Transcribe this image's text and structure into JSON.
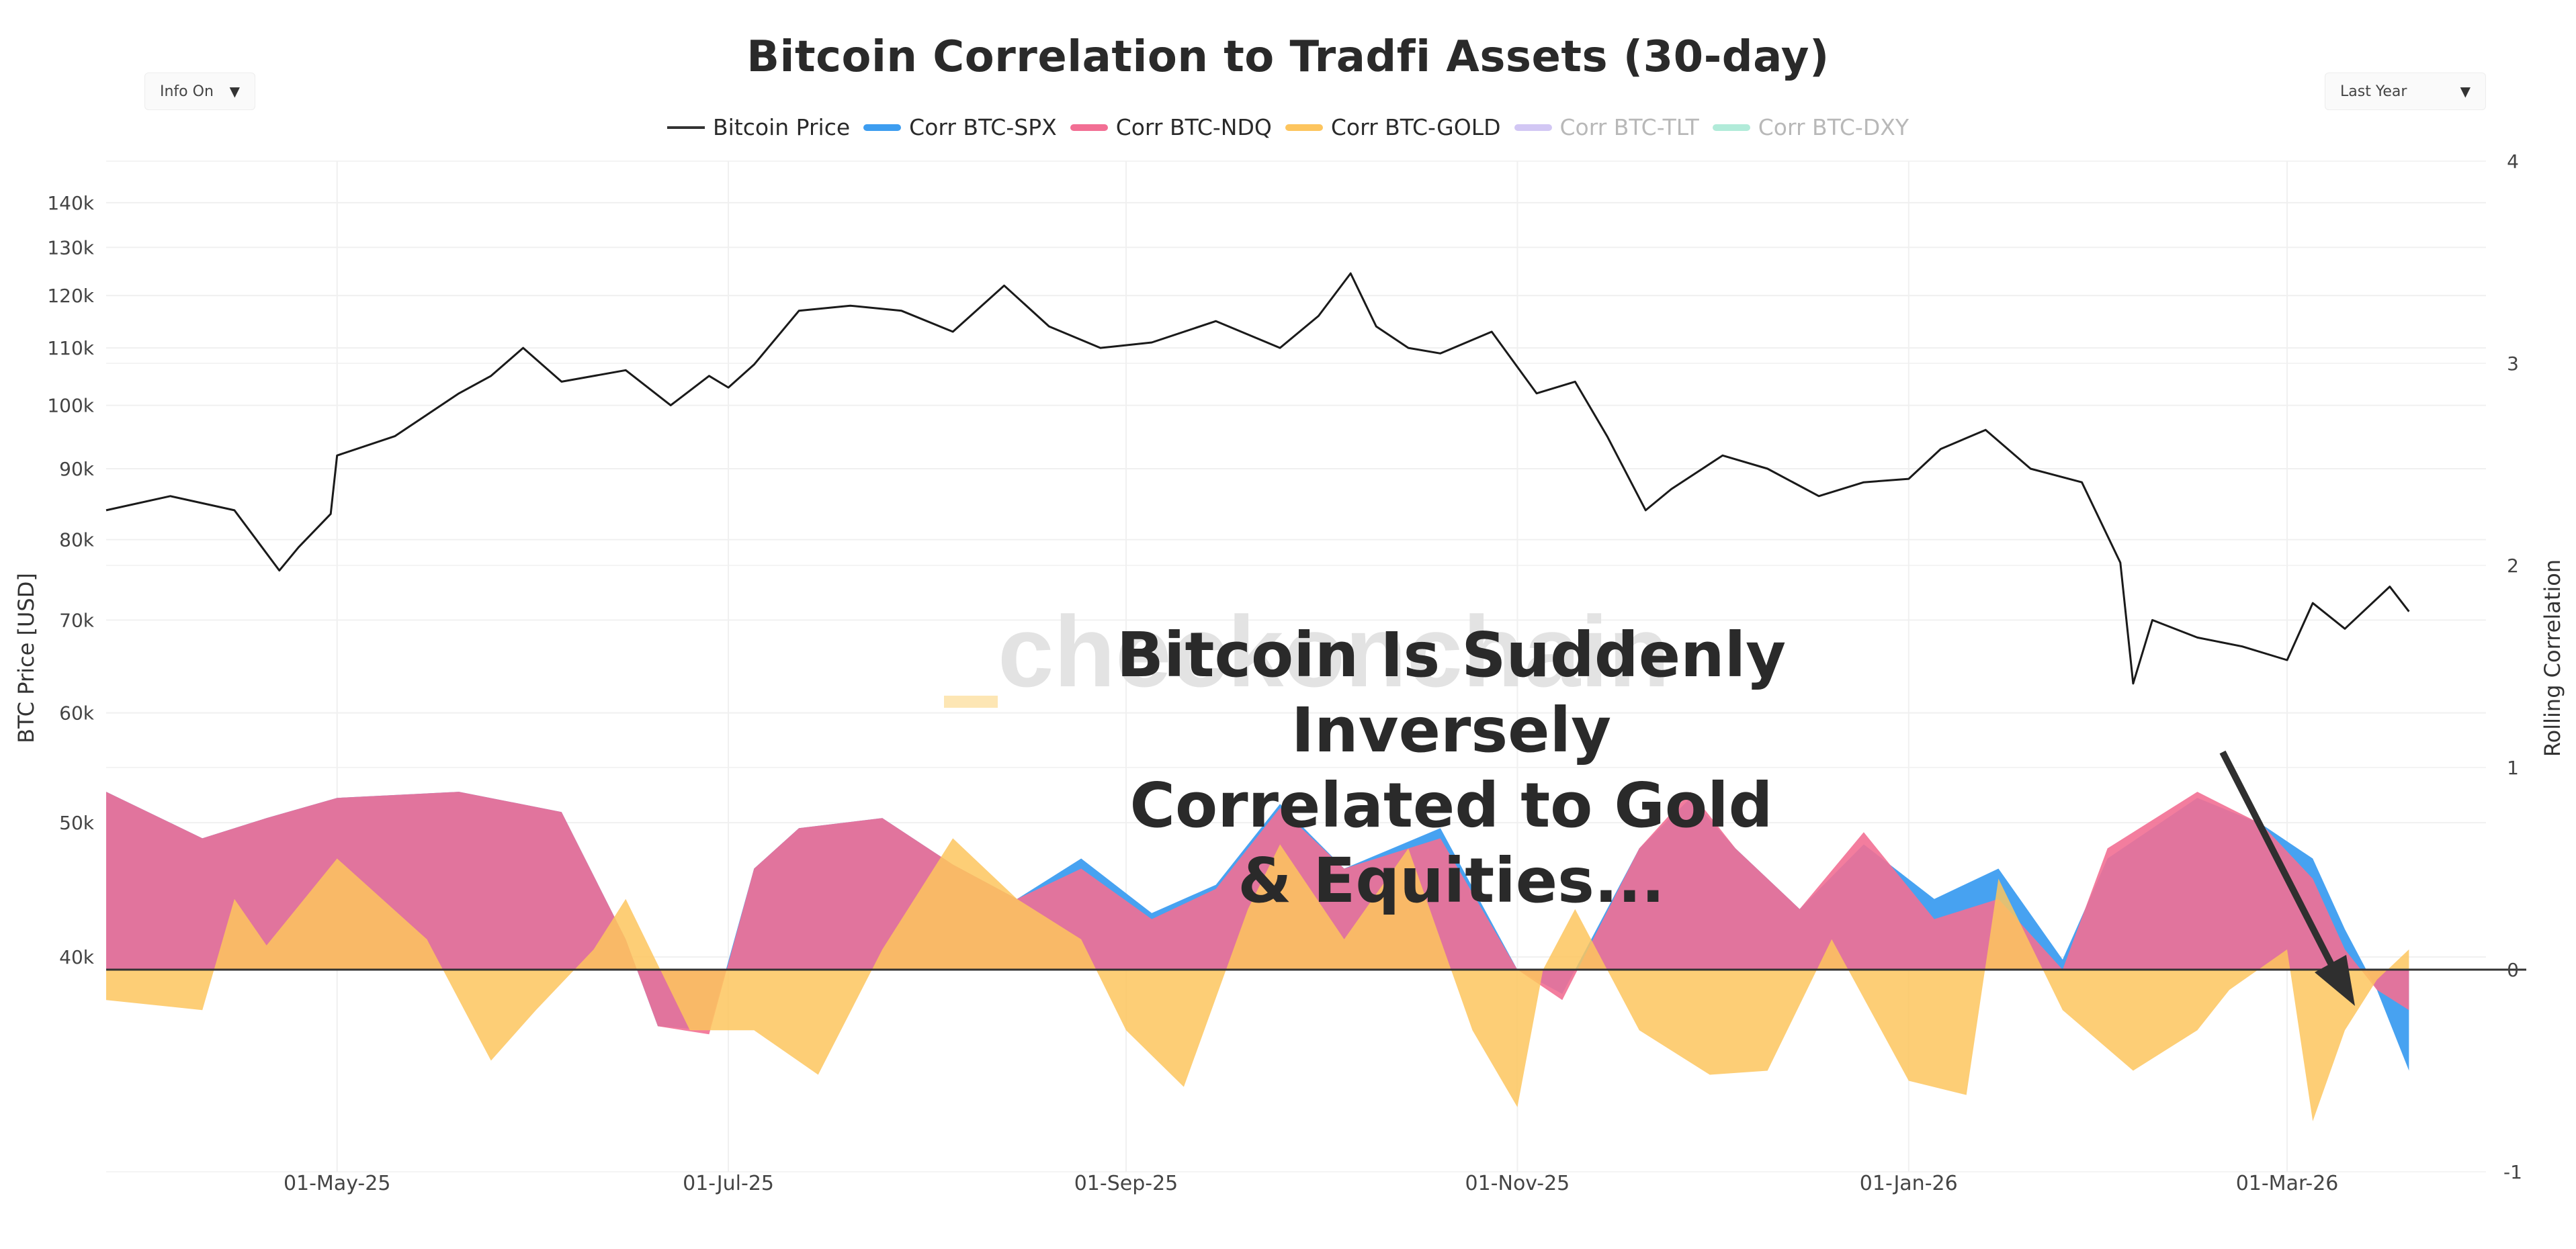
{
  "title": "Bitcoin Correlation to Tradfi Assets (30-day)",
  "controls": {
    "info_toggle": "Info On",
    "range_select": "Last Year",
    "dropdown_glyph": "▼"
  },
  "legend": [
    {
      "label": "Bitcoin Price",
      "color": "#333333",
      "active": true,
      "kind": "line"
    },
    {
      "label": "Corr BTC-SPX",
      "color": "#3d9df0",
      "active": true,
      "kind": "area"
    },
    {
      "label": "Corr BTC-NDQ",
      "color": "#f26f94",
      "active": true,
      "kind": "area"
    },
    {
      "label": "Corr BTC-GOLD",
      "color": "#fdc55e",
      "active": true,
      "kind": "area"
    },
    {
      "label": "Corr BTC-TLT",
      "color": "#d2c7f4",
      "active": false,
      "kind": "area"
    },
    {
      "label": "Corr BTC-DXY",
      "color": "#b1ebd9",
      "active": false,
      "kind": "area"
    }
  ],
  "watermark": "checkonchain",
  "annotation": {
    "line1": "Bitcoin Is Suddenly Inversely",
    "line2": "Correlated to Gold & Equities..."
  },
  "chart_data": {
    "type": "line",
    "x_axis": {
      "ticks": [
        "01-May-25",
        "01-Jul-25",
        "01-Sep-25",
        "01-Nov-25",
        "01-Jan-26",
        "01-Mar-26"
      ],
      "range": [
        "2025-03-26",
        "2026-04-01"
      ]
    },
    "y_axis_left": {
      "title": "BTC Price [USD]",
      "scale": "log",
      "range": [
        28000,
        150000
      ],
      "ticks": [
        "40k",
        "50k",
        "60k",
        "70k",
        "80k",
        "90k",
        "100k",
        "110k",
        "120k",
        "130k",
        "140k"
      ],
      "tick_values": [
        40000,
        50000,
        60000,
        70000,
        80000,
        90000,
        100000,
        110000,
        120000,
        130000,
        140000
      ]
    },
    "y_axis_right": {
      "title": "Rolling Correlation",
      "range": [
        -1,
        4
      ],
      "ticks": [
        "-1",
        "0",
        "1",
        "2",
        "3",
        "4"
      ],
      "tick_values": [
        -1,
        0,
        1,
        2,
        3,
        4
      ]
    },
    "grid": true,
    "legend_position": "top",
    "series": [
      {
        "name": "Bitcoin Price",
        "axis": "left",
        "points": [
          [
            "2025-03-26",
            84000
          ],
          [
            "2025-04-05",
            86000
          ],
          [
            "2025-04-15",
            84000
          ],
          [
            "2025-04-22",
            76000
          ],
          [
            "2025-04-25",
            79000
          ],
          [
            "2025-04-30",
            83500
          ],
          [
            "2025-05-01",
            92000
          ],
          [
            "2025-05-10",
            95000
          ],
          [
            "2025-05-20",
            102000
          ],
          [
            "2025-05-25",
            105000
          ],
          [
            "2025-05-30",
            110000
          ],
          [
            "2025-06-05",
            104000
          ],
          [
            "2025-06-15",
            106000
          ],
          [
            "2025-06-22",
            100000
          ],
          [
            "2025-06-28",
            105000
          ],
          [
            "2025-07-01",
            103000
          ],
          [
            "2025-07-05",
            107000
          ],
          [
            "2025-07-12",
            117000
          ],
          [
            "2025-07-20",
            118000
          ],
          [
            "2025-07-28",
            117000
          ],
          [
            "2025-08-05",
            113000
          ],
          [
            "2025-08-13",
            122000
          ],
          [
            "2025-08-20",
            114000
          ],
          [
            "2025-08-28",
            110000
          ],
          [
            "2025-09-05",
            111000
          ],
          [
            "2025-09-15",
            115000
          ],
          [
            "2025-09-25",
            110000
          ],
          [
            "2025-10-01",
            116000
          ],
          [
            "2025-10-06",
            124500
          ],
          [
            "2025-10-10",
            114000
          ],
          [
            "2025-10-15",
            110000
          ],
          [
            "2025-10-20",
            109000
          ],
          [
            "2025-10-28",
            113000
          ],
          [
            "2025-11-04",
            102000
          ],
          [
            "2025-11-10",
            104000
          ],
          [
            "2025-11-15",
            95000
          ],
          [
            "2025-11-21",
            84000
          ],
          [
            "2025-11-25",
            87000
          ],
          [
            "2025-12-03",
            92000
          ],
          [
            "2025-12-10",
            90000
          ],
          [
            "2025-12-18",
            86000
          ],
          [
            "2025-12-25",
            88000
          ],
          [
            "2026-01-01",
            88500
          ],
          [
            "2026-01-06",
            93000
          ],
          [
            "2026-01-13",
            96000
          ],
          [
            "2026-01-20",
            90000
          ],
          [
            "2026-01-28",
            88000
          ],
          [
            "2026-02-03",
            77000
          ],
          [
            "2026-02-05",
            63000
          ],
          [
            "2026-02-08",
            70000
          ],
          [
            "2026-02-15",
            68000
          ],
          [
            "2026-02-22",
            67000
          ],
          [
            "2026-03-01",
            65500
          ],
          [
            "2026-03-05",
            72000
          ],
          [
            "2026-03-10",
            69000
          ],
          [
            "2026-03-17",
            74000
          ],
          [
            "2026-03-20",
            71000
          ]
        ]
      },
      {
        "name": "Corr BTC-SPX",
        "axis": "right",
        "points": [
          [
            "2025-03-26",
            0.88
          ],
          [
            "2025-04-10",
            0.65
          ],
          [
            "2025-04-20",
            0.75
          ],
          [
            "2025-05-01",
            0.85
          ],
          [
            "2025-05-20",
            0.88
          ],
          [
            "2025-06-05",
            0.78
          ],
          [
            "2025-06-15",
            0.15
          ],
          [
            "2025-06-20",
            -0.28
          ],
          [
            "2025-06-28",
            -0.3
          ],
          [
            "2025-07-05",
            0.5
          ],
          [
            "2025-07-12",
            0.7
          ],
          [
            "2025-07-25",
            0.75
          ],
          [
            "2025-08-05",
            0.52
          ],
          [
            "2025-08-15",
            0.35
          ],
          [
            "2025-08-25",
            0.55
          ],
          [
            "2025-09-05",
            0.28
          ],
          [
            "2025-09-15",
            0.42
          ],
          [
            "2025-09-25",
            0.82
          ],
          [
            "2025-10-05",
            0.5
          ],
          [
            "2025-10-20",
            0.7
          ],
          [
            "2025-11-01",
            0.0
          ],
          [
            "2025-11-08",
            -0.12
          ],
          [
            "2025-11-20",
            0.6
          ],
          [
            "2025-11-28",
            0.85
          ],
          [
            "2025-12-05",
            0.6
          ],
          [
            "2025-12-15",
            0.3
          ],
          [
            "2025-12-25",
            0.62
          ],
          [
            "2026-01-05",
            0.35
          ],
          [
            "2026-01-15",
            0.5
          ],
          [
            "2026-01-25",
            0.05
          ],
          [
            "2026-02-01",
            0.55
          ],
          [
            "2026-02-15",
            0.85
          ],
          [
            "2026-02-25",
            0.72
          ],
          [
            "2026-03-05",
            0.55
          ],
          [
            "2026-03-10",
            0.2
          ],
          [
            "2026-03-15",
            -0.1
          ],
          [
            "2026-03-20",
            -0.5
          ]
        ]
      },
      {
        "name": "Corr BTC-NDQ",
        "axis": "right",
        "points": [
          [
            "2025-03-26",
            0.88
          ],
          [
            "2025-04-10",
            0.65
          ],
          [
            "2025-04-20",
            0.75
          ],
          [
            "2025-05-01",
            0.85
          ],
          [
            "2025-05-20",
            0.88
          ],
          [
            "2025-06-05",
            0.78
          ],
          [
            "2025-06-15",
            0.15
          ],
          [
            "2025-06-20",
            -0.28
          ],
          [
            "2025-06-28",
            -0.32
          ],
          [
            "2025-07-05",
            0.5
          ],
          [
            "2025-07-12",
            0.7
          ],
          [
            "2025-07-25",
            0.75
          ],
          [
            "2025-08-05",
            0.52
          ],
          [
            "2025-08-15",
            0.35
          ],
          [
            "2025-08-25",
            0.5
          ],
          [
            "2025-09-05",
            0.25
          ],
          [
            "2025-09-15",
            0.4
          ],
          [
            "2025-09-25",
            0.8
          ],
          [
            "2025-10-05",
            0.5
          ],
          [
            "2025-10-20",
            0.65
          ],
          [
            "2025-11-01",
            0.0
          ],
          [
            "2025-11-08",
            -0.15
          ],
          [
            "2025-11-20",
            0.6
          ],
          [
            "2025-11-28",
            0.88
          ],
          [
            "2025-12-05",
            0.6
          ],
          [
            "2025-12-15",
            0.3
          ],
          [
            "2025-12-25",
            0.68
          ],
          [
            "2026-01-05",
            0.25
          ],
          [
            "2026-01-15",
            0.35
          ],
          [
            "2026-01-25",
            0.0
          ],
          [
            "2026-02-01",
            0.6
          ],
          [
            "2026-02-15",
            0.88
          ],
          [
            "2026-02-25",
            0.72
          ],
          [
            "2026-03-05",
            0.45
          ],
          [
            "2026-03-10",
            0.1
          ],
          [
            "2026-03-15",
            -0.1
          ],
          [
            "2026-03-20",
            -0.2
          ]
        ]
      },
      {
        "name": "Corr BTC-GOLD",
        "axis": "right",
        "points": [
          [
            "2025-03-26",
            -0.15
          ],
          [
            "2025-04-10",
            -0.2
          ],
          [
            "2025-04-15",
            0.35
          ],
          [
            "2025-04-20",
            0.12
          ],
          [
            "2025-05-01",
            0.55
          ],
          [
            "2025-05-15",
            0.15
          ],
          [
            "2025-05-25",
            -0.45
          ],
          [
            "2025-06-01",
            -0.2
          ],
          [
            "2025-06-10",
            0.1
          ],
          [
            "2025-06-15",
            0.35
          ],
          [
            "2025-06-25",
            -0.3
          ],
          [
            "2025-07-05",
            -0.3
          ],
          [
            "2025-07-15",
            -0.52
          ],
          [
            "2025-07-25",
            0.1
          ],
          [
            "2025-08-05",
            0.65
          ],
          [
            "2025-08-15",
            0.35
          ],
          [
            "2025-08-25",
            0.15
          ],
          [
            "2025-09-01",
            -0.3
          ],
          [
            "2025-09-10",
            -0.58
          ],
          [
            "2025-09-20",
            0.3
          ],
          [
            "2025-09-25",
            0.62
          ],
          [
            "2025-10-05",
            0.15
          ],
          [
            "2025-10-15",
            0.6
          ],
          [
            "2025-10-25",
            -0.3
          ],
          [
            "2025-11-01",
            -0.68
          ],
          [
            "2025-11-05",
            0.0
          ],
          [
            "2025-11-10",
            0.3
          ],
          [
            "2025-11-20",
            -0.3
          ],
          [
            "2025-12-01",
            -0.52
          ],
          [
            "2025-12-10",
            -0.5
          ],
          [
            "2025-12-20",
            0.15
          ],
          [
            "2026-01-01",
            -0.55
          ],
          [
            "2026-01-10",
            -0.62
          ],
          [
            "2026-01-15",
            0.45
          ],
          [
            "2026-01-25",
            -0.2
          ],
          [
            "2026-02-05",
            -0.5
          ],
          [
            "2026-02-15",
            -0.3
          ],
          [
            "2026-02-20",
            -0.1
          ],
          [
            "2026-03-01",
            0.1
          ],
          [
            "2026-03-05",
            -0.75
          ],
          [
            "2026-03-10",
            -0.3
          ],
          [
            "2026-03-15",
            -0.05
          ],
          [
            "2026-03-20",
            0.1
          ]
        ]
      }
    ]
  }
}
